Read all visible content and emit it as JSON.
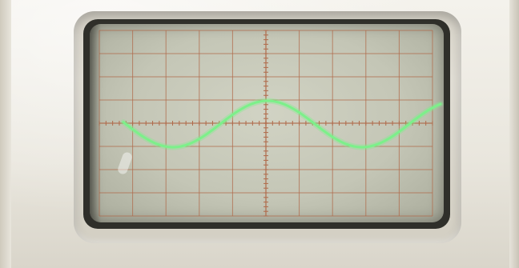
{
  "scene": {
    "subject": "oscilloscope",
    "colors": {
      "bezel": "#ebe8df",
      "screen": "#c8cabb",
      "graticule": "#b06a4a",
      "trace": "#7cf08a"
    }
  }
}
